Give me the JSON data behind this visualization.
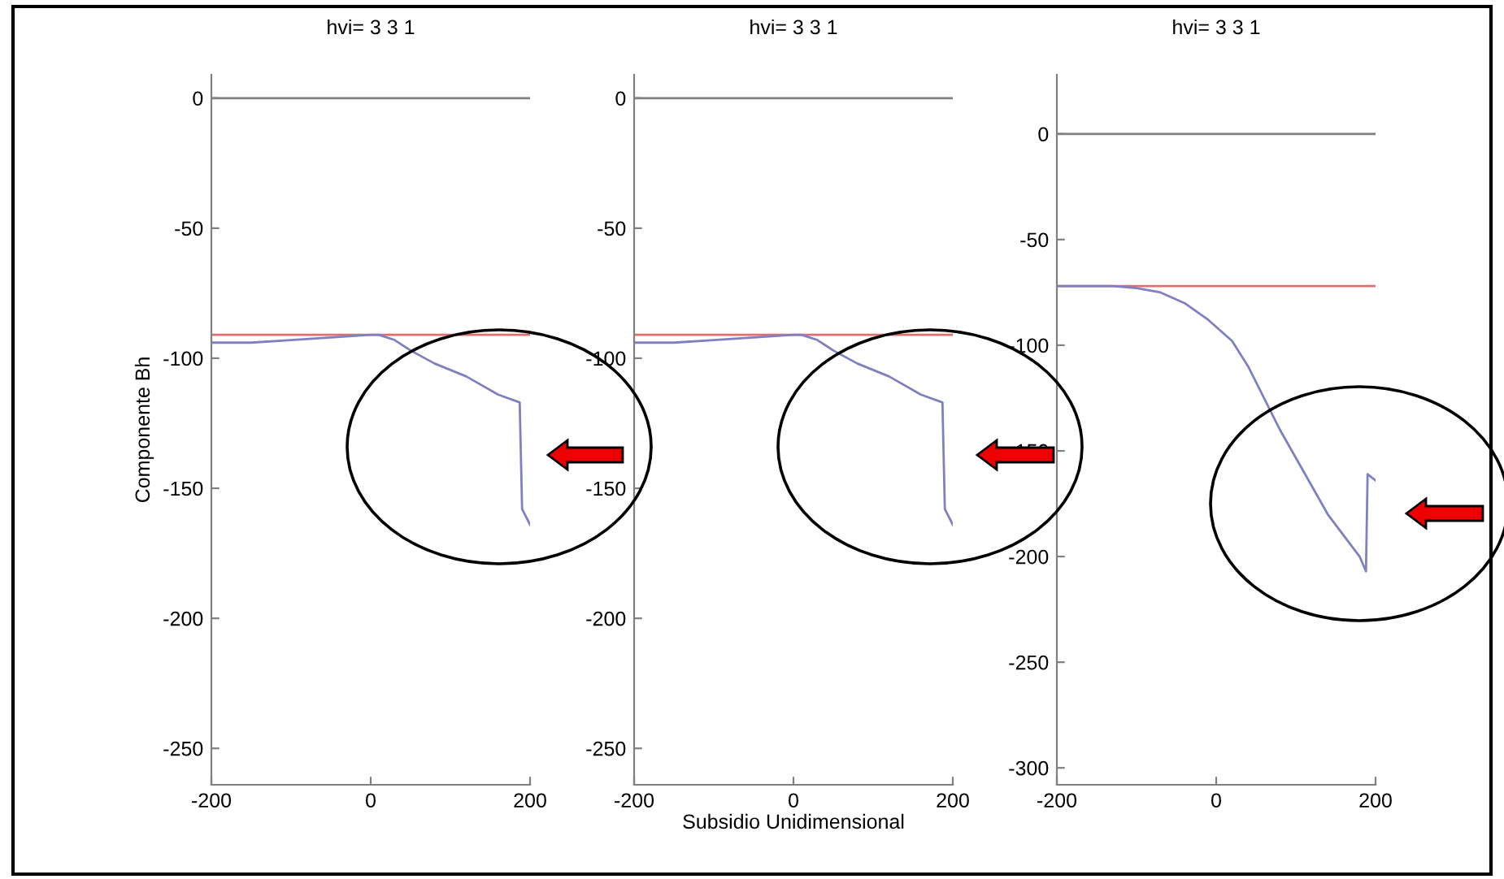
{
  "chart_data": [
    {
      "type": "line",
      "title": "hvi= 3 3 1",
      "ylabel": "Componente Bh",
      "xlim": [
        -200,
        200
      ],
      "ylim": [
        -264,
        9
      ],
      "xticks": [
        -200,
        0,
        200
      ],
      "yticks": [
        -250,
        -200,
        -150,
        -100,
        -50,
        0
      ],
      "grid": false,
      "series": [
        {
          "color": "#808080",
          "x": [
            -200,
            200
          ],
          "values": [
            0,
            0
          ]
        },
        {
          "color": "#e07070",
          "x": [
            -200,
            200
          ],
          "values": [
            -91,
            -91
          ]
        },
        {
          "color": "#8080c0",
          "x": [
            -200,
            -150,
            -100,
            -50,
            0,
            10,
            30,
            50,
            80,
            120,
            160,
            187,
            190,
            200
          ],
          "values": [
            -94,
            -94,
            -93,
            -92,
            -91,
            -91,
            -93,
            -97,
            -102,
            -107,
            -114,
            -117,
            -158,
            -164
          ]
        }
      ]
    },
    {
      "type": "line",
      "title": "hvi= 3 3 1",
      "xlabel": "Subsidio Unidimensional",
      "xlim": [
        -200,
        200
      ],
      "ylim": [
        -264,
        9
      ],
      "xticks": [
        -200,
        0,
        200
      ],
      "yticks": [
        -250,
        -200,
        -150,
        -100,
        -50,
        0
      ],
      "grid": false,
      "series": [
        {
          "color": "#808080",
          "x": [
            -200,
            200
          ],
          "values": [
            0,
            0
          ]
        },
        {
          "color": "#e07070",
          "x": [
            -200,
            200
          ],
          "values": [
            -91,
            -91
          ]
        },
        {
          "color": "#8080c0",
          "x": [
            -200,
            -150,
            -100,
            -50,
            0,
            10,
            30,
            50,
            80,
            120,
            160,
            187,
            190,
            200
          ],
          "values": [
            -94,
            -94,
            -93,
            -92,
            -91,
            -91,
            -93,
            -97,
            -102,
            -107,
            -114,
            -117,
            -158,
            -164
          ]
        }
      ]
    },
    {
      "type": "line",
      "title": "hvi= 3 3 1",
      "xlim": [
        -200,
        200
      ],
      "ylim": [
        -308,
        28
      ],
      "xticks": [
        -200,
        0,
        200
      ],
      "yticks": [
        -300,
        -250,
        -200,
        -150,
        -100,
        -50,
        0
      ],
      "grid": false,
      "series": [
        {
          "color": "#808080",
          "x": [
            -200,
            200
          ],
          "values": [
            0,
            0
          ]
        },
        {
          "color": "#e07070",
          "x": [
            -200,
            200
          ],
          "values": [
            -72,
            -72
          ]
        },
        {
          "color": "#8080c0",
          "x": [
            -200,
            -130,
            -100,
            -70,
            -40,
            -10,
            20,
            40,
            60,
            80,
            110,
            140,
            180,
            188,
            190,
            200
          ],
          "values": [
            -72,
            -72,
            -73,
            -75,
            -80,
            -88,
            -98,
            -110,
            -125,
            -140,
            -160,
            -180,
            -200,
            -207,
            -161,
            -164
          ]
        }
      ]
    }
  ]
}
